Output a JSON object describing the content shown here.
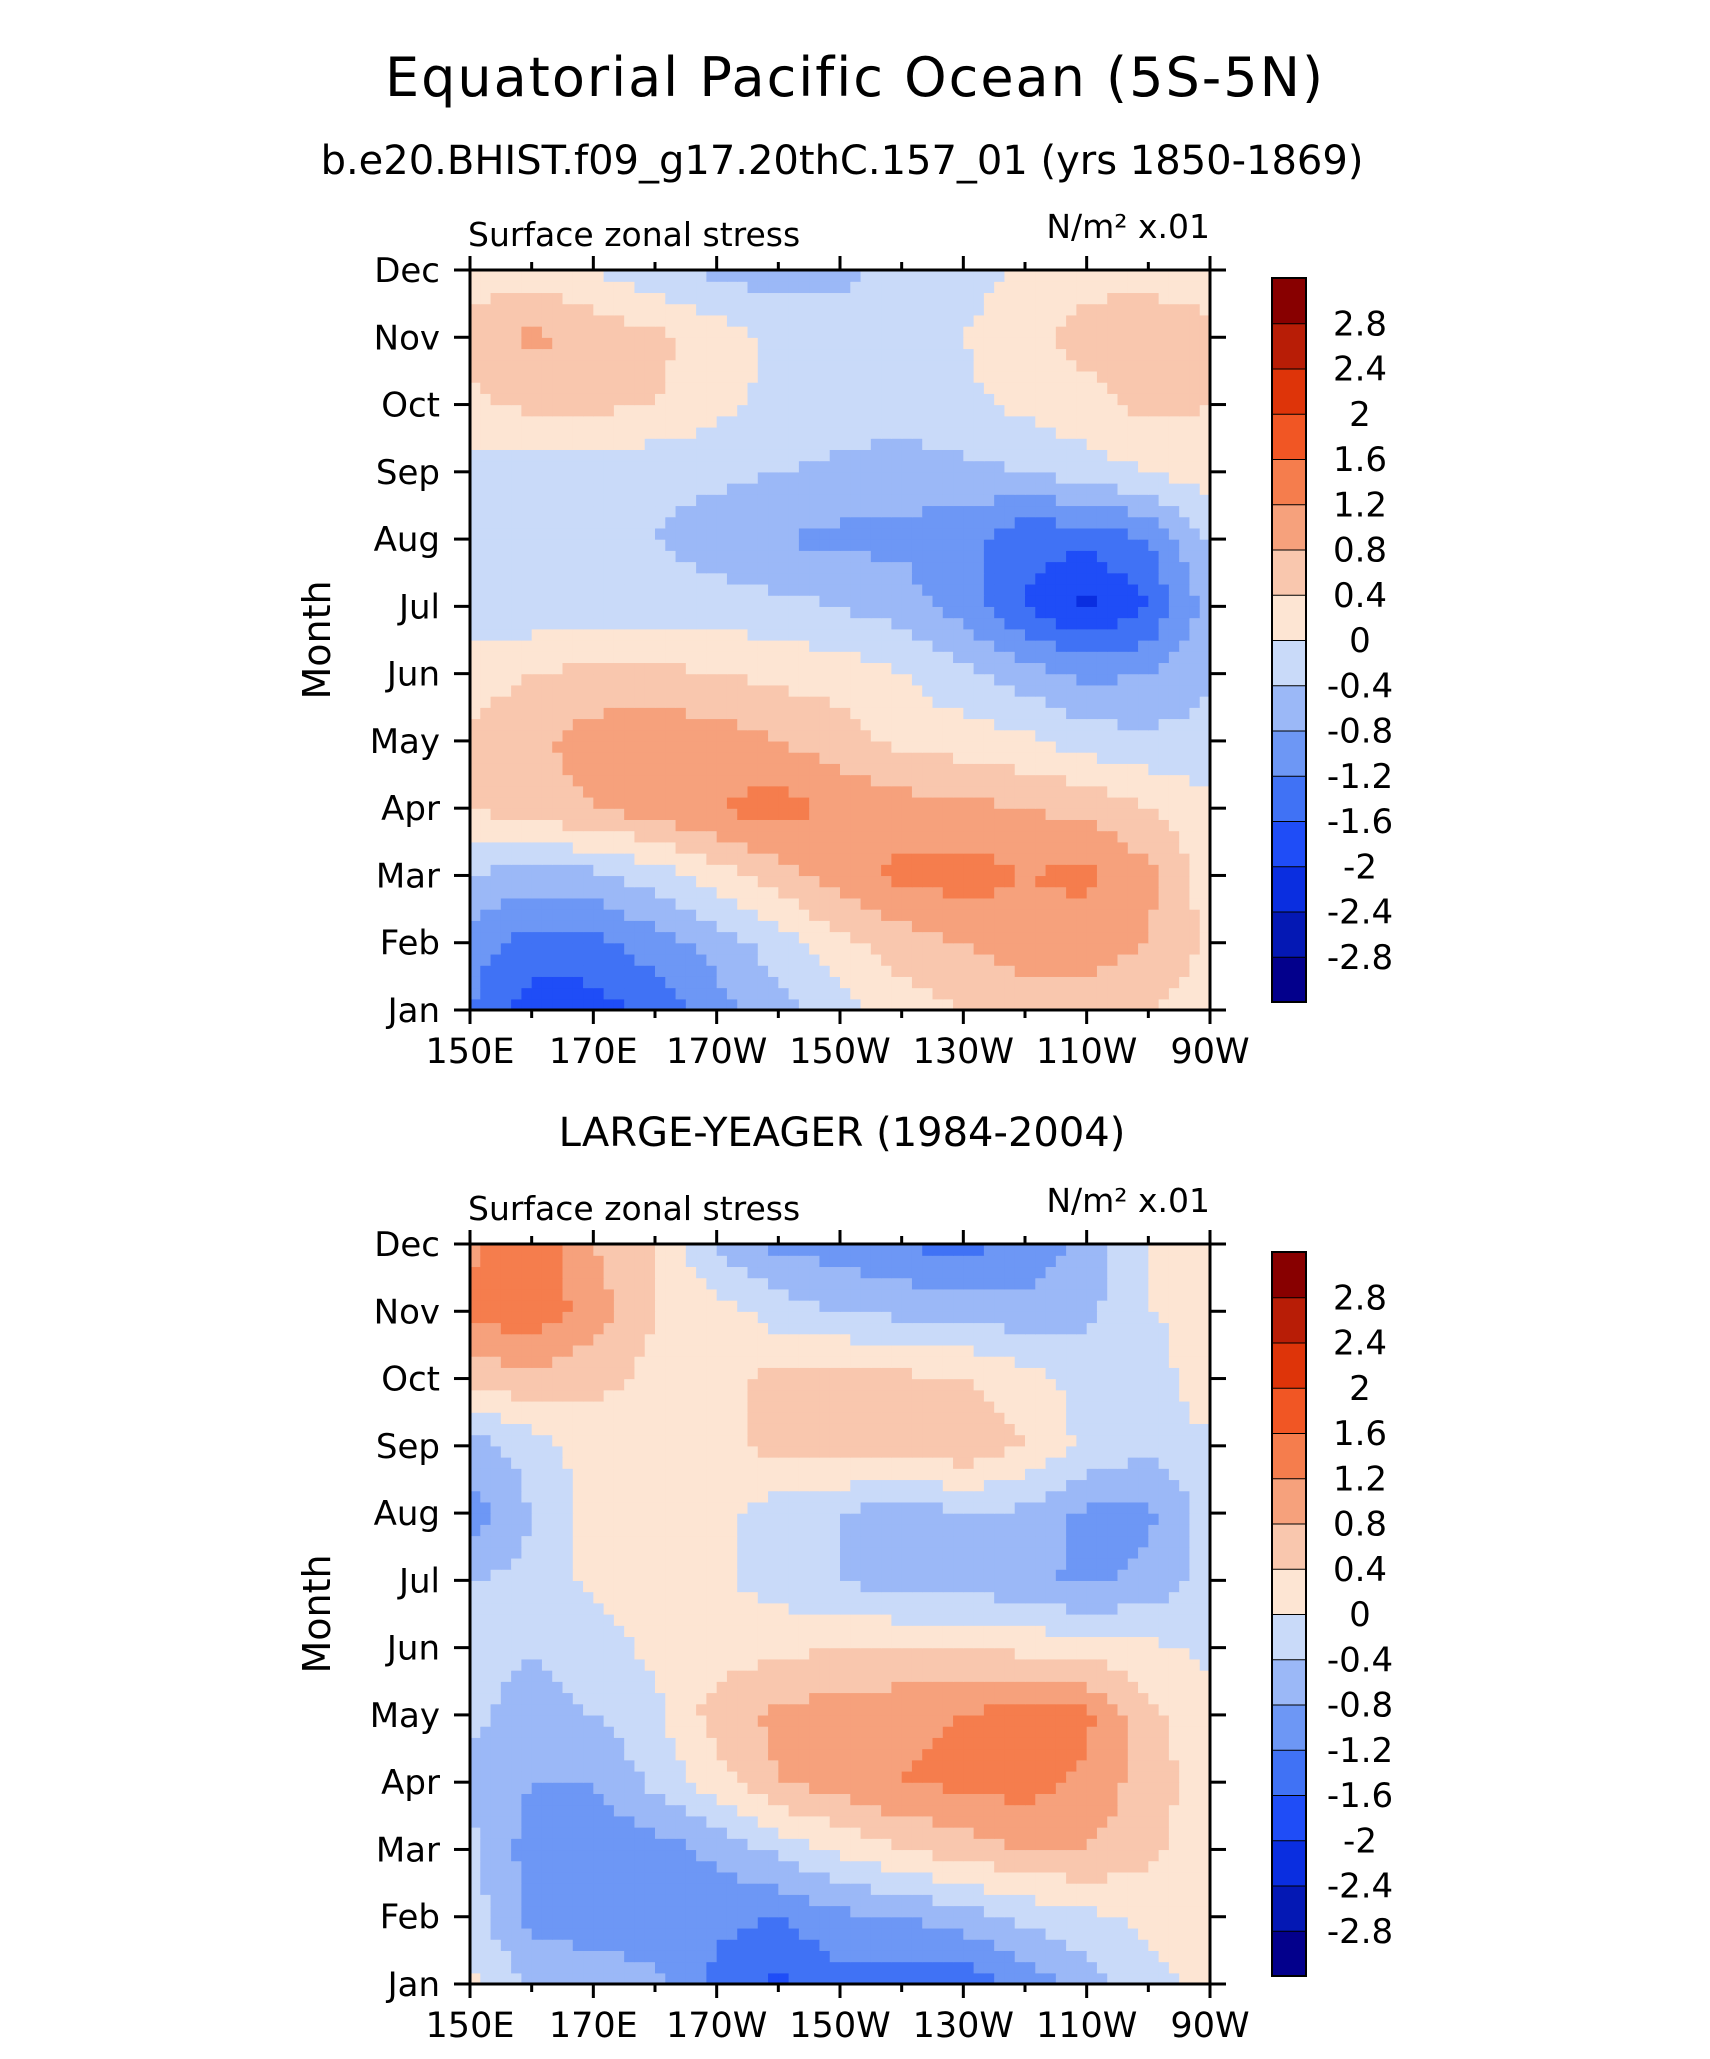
{
  "figure": {
    "title": "Equatorial Pacific Ocean (5S-5N)"
  },
  "chart_data": [
    {
      "type": "heatmap",
      "title": "b.e20.BHIST.f09_g17.20thC.157_01 (yrs 1850-1869)",
      "left_label": "Surface zonal stress",
      "right_label": "N/m² x.01",
      "ylabel": "Month",
      "xlabel": "",
      "x_ticks": [
        "150E",
        "170E",
        "170W",
        "150W",
        "130W",
        "110W",
        "90W"
      ],
      "y_ticks": [
        "Jan",
        "Feb",
        "Mar",
        "Apr",
        "May",
        "Jun",
        "Jul",
        "Aug",
        "Sep",
        "Oct",
        "Nov",
        "Dec"
      ],
      "x_range": [
        "150E",
        "90W"
      ],
      "y_range": [
        "Jan",
        "Dec"
      ],
      "rows_months": [
        "Jan",
        "Feb",
        "Mar",
        "Apr",
        "May",
        "Jun",
        "Jul",
        "Aug",
        "Sep",
        "Oct",
        "Nov",
        "Dec"
      ],
      "columns_lon": [
        "150E",
        "160E",
        "170E",
        "180",
        "170W",
        "160W",
        "150W",
        "140W",
        "130W",
        "120W",
        "110W",
        "100W",
        "90W"
      ],
      "values": [
        [
          -1.2,
          -1.8,
          -1.8,
          -1.5,
          -1.0,
          -0.6,
          -0.2,
          0.2,
          0.4,
          0.6,
          0.6,
          0.4,
          0.2
        ],
        [
          -1.0,
          -1.4,
          -1.3,
          -1.0,
          -0.6,
          -0.2,
          0.3,
          0.6,
          0.8,
          1.0,
          1.0,
          0.8,
          0.3
        ],
        [
          -0.4,
          -0.6,
          -0.5,
          -0.2,
          0.2,
          0.6,
          1.0,
          1.3,
          1.4,
          1.2,
          1.3,
          0.9,
          0.2
        ],
        [
          0.4,
          0.6,
          0.8,
          1.0,
          1.2,
          1.4,
          1.1,
          1.0,
          0.9,
          0.8,
          0.7,
          0.4,
          0.1
        ],
        [
          0.5,
          0.7,
          1.0,
          1.1,
          1.0,
          0.8,
          0.6,
          0.3,
          0.2,
          0.1,
          -0.2,
          -0.3,
          -0.3
        ],
        [
          0.2,
          0.4,
          0.5,
          0.5,
          0.4,
          0.3,
          0.2,
          0.0,
          -0.3,
          -0.6,
          -0.9,
          -0.8,
          -0.4
        ],
        [
          -0.3,
          -0.3,
          -0.2,
          -0.2,
          -0.2,
          -0.3,
          -0.4,
          -0.6,
          -1.0,
          -1.6,
          -2.1,
          -1.6,
          -0.6
        ],
        [
          -0.2,
          -0.2,
          -0.3,
          -0.4,
          -0.6,
          -0.8,
          -0.9,
          -0.9,
          -1.1,
          -1.5,
          -1.5,
          -1.2,
          -0.3
        ],
        [
          -0.2,
          -0.2,
          -0.3,
          -0.3,
          -0.3,
          -0.4,
          -0.5,
          -0.6,
          -0.5,
          -0.4,
          -0.2,
          0.0,
          0.2
        ],
        [
          0.3,
          0.5,
          0.5,
          0.4,
          0.1,
          -0.1,
          -0.2,
          -0.2,
          -0.1,
          0.1,
          0.3,
          0.5,
          0.4
        ],
        [
          0.6,
          0.9,
          0.7,
          0.5,
          0.2,
          -0.1,
          -0.2,
          -0.2,
          0.0,
          0.3,
          0.5,
          0.6,
          0.5
        ],
        [
          0.2,
          0.2,
          0.0,
          -0.3,
          -0.5,
          -0.6,
          -0.5,
          -0.3,
          -0.2,
          0.1,
          0.3,
          0.3,
          0.2
        ]
      ]
    },
    {
      "type": "heatmap",
      "title": "LARGE-YEAGER (1984-2004)",
      "left_label": "Surface zonal stress",
      "right_label": "N/m² x.01",
      "ylabel": "Month",
      "xlabel": "",
      "x_ticks": [
        "150E",
        "170E",
        "170W",
        "150W",
        "130W",
        "110W",
        "90W"
      ],
      "y_ticks": [
        "Jan",
        "Feb",
        "Mar",
        "Apr",
        "May",
        "Jun",
        "Jul",
        "Aug",
        "Sep",
        "Oct",
        "Nov",
        "Dec"
      ],
      "x_range": [
        "150E",
        "90W"
      ],
      "y_range": [
        "Jan",
        "Dec"
      ],
      "rows_months": [
        "Jan",
        "Feb",
        "Mar",
        "Apr",
        "May",
        "Jun",
        "Jul",
        "Aug",
        "Sep",
        "Oct",
        "Nov",
        "Dec"
      ],
      "columns_lon": [
        "150E",
        "160E",
        "170E",
        "180",
        "170W",
        "160W",
        "150W",
        "140W",
        "130W",
        "120W",
        "110W",
        "100W",
        "90W"
      ],
      "values": [
        [
          0.1,
          -0.5,
          -0.6,
          -0.7,
          -1.3,
          -1.7,
          -1.3,
          -1.4,
          -1.5,
          -1.1,
          -0.6,
          -0.1,
          0.1
        ],
        [
          -0.2,
          -0.9,
          -1.0,
          -1.0,
          -1.1,
          -1.2,
          -0.9,
          -0.8,
          -0.6,
          -0.3,
          -0.1,
          0.1,
          0.1
        ],
        [
          -0.3,
          -1.0,
          -1.1,
          -1.0,
          -0.7,
          -0.3,
          0.1,
          0.4,
          0.6,
          0.8,
          0.8,
          0.5,
          0.1
        ],
        [
          -0.5,
          -0.8,
          -0.8,
          -0.3,
          0.2,
          0.8,
          1.0,
          1.2,
          1.3,
          1.4,
          1.1,
          0.6,
          0.2
        ],
        [
          -0.3,
          -0.6,
          -0.4,
          -0.1,
          0.6,
          0.9,
          1.0,
          1.1,
          1.2,
          1.4,
          1.3,
          0.5,
          0.1
        ],
        [
          -0.2,
          -0.4,
          -0.2,
          0.1,
          0.2,
          0.3,
          0.4,
          0.4,
          0.4,
          0.3,
          0.2,
          0.1,
          -0.1
        ],
        [
          -0.4,
          -0.3,
          0.1,
          0.2,
          0.1,
          -0.2,
          -0.4,
          -0.6,
          -0.6,
          -0.7,
          -0.9,
          -0.7,
          -0.2
        ],
        [
          -1.0,
          -0.4,
          0.2,
          0.3,
          0.1,
          -0.2,
          -0.4,
          -0.7,
          -0.4,
          -0.5,
          -0.9,
          -0.9,
          -0.2
        ],
        [
          -0.6,
          -0.2,
          0.2,
          0.3,
          0.3,
          0.5,
          0.6,
          0.6,
          0.7,
          0.4,
          -0.1,
          -0.3,
          -0.1
        ],
        [
          0.5,
          0.7,
          0.5,
          0.3,
          0.3,
          0.5,
          0.6,
          0.5,
          0.4,
          0.2,
          -0.2,
          -0.3,
          0.4
        ],
        [
          1.3,
          1.5,
          1.0,
          0.4,
          0.2,
          -0.2,
          -0.4,
          -0.5,
          -0.5,
          -0.7,
          -0.5,
          0.0,
          0.1
        ],
        [
          1.1,
          1.6,
          0.8,
          0.4,
          -0.5,
          -0.9,
          -1.0,
          -1.2,
          -1.4,
          -1.0,
          -0.7,
          0.0,
          0.1
        ]
      ]
    }
  ],
  "colorbar": {
    "labels": [
      "2.8",
      "2.4",
      "2",
      "1.6",
      "1.2",
      "0.8",
      "0.4",
      "0",
      "-0.4",
      "-0.8",
      "-1.2",
      "-1.6",
      "-2",
      "-2.4",
      "-2.8"
    ],
    "levels": [
      -2.8,
      -2.4,
      -2.0,
      -1.6,
      -1.2,
      -0.8,
      -0.4,
      0,
      0.4,
      0.8,
      1.2,
      1.6,
      2.0,
      2.4,
      2.8
    ],
    "colors": [
      "#03008c",
      "#0418b4",
      "#0a2ee0",
      "#1f4df7",
      "#4072f5",
      "#6d97f5",
      "#9bb8f7",
      "#c9daf9",
      "#fde5d3",
      "#f9c7ae",
      "#f6a17c",
      "#f57d4d",
      "#f15624",
      "#de3409",
      "#b81d06",
      "#880000"
    ]
  }
}
